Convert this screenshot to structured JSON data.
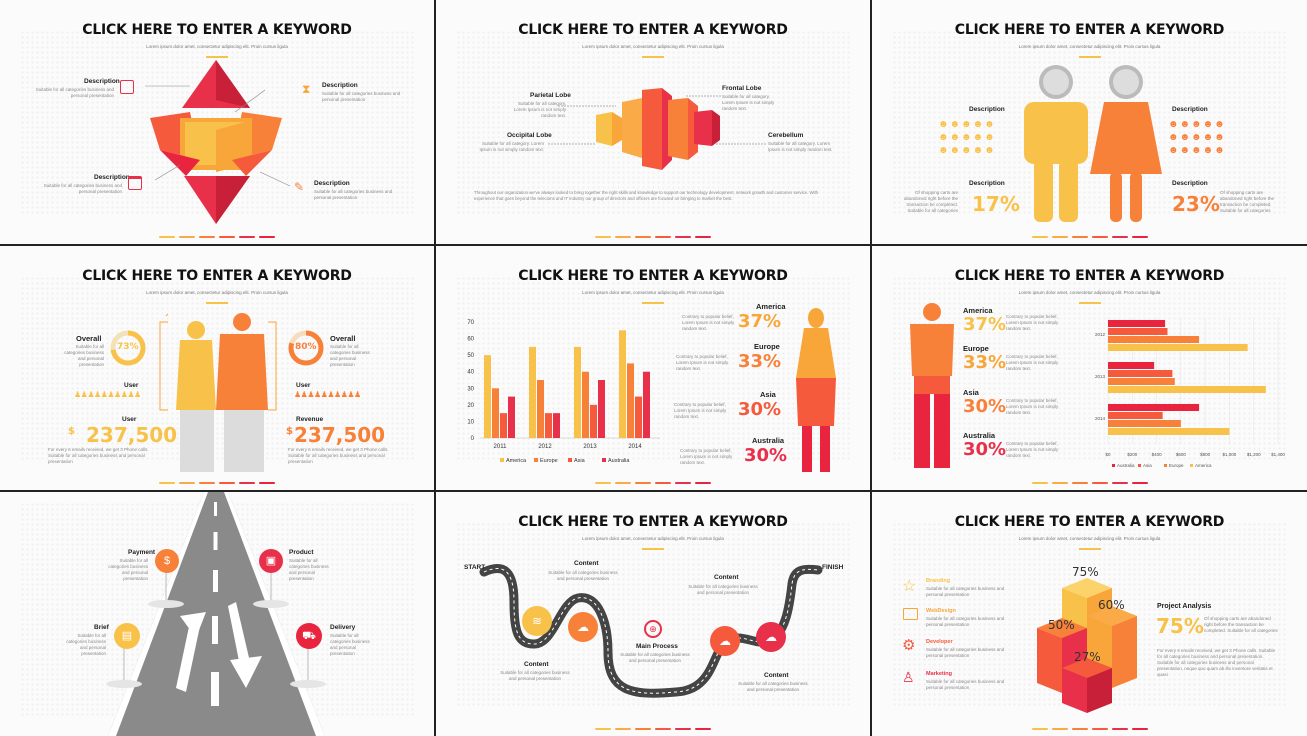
{
  "colors": {
    "yellow": "#f8c24a",
    "light_orange": "#fbaa48",
    "orange": "#f8813a",
    "red_orange": "#f55a3c",
    "red": "#e8304a",
    "crimson": "#e8243f",
    "grey": "#999999"
  },
  "common": {
    "title": "CLICK HERE TO ENTER A KEYWORD",
    "subtitle": "Lorem ipsum dolor amet, consectetur adipiscing elit. Proin cursus ligula"
  },
  "slide1": {
    "items": [
      {
        "title": "Description",
        "text": "Suitable for all categories business and personal presentation",
        "icon": "image-icon"
      },
      {
        "title": "Description",
        "text": "Suitable for all categories business and personal presentation",
        "icon": "hourglass-icon"
      },
      {
        "title": "Description",
        "text": "Suitable for all categories business and personal presentation",
        "icon": "calendar-icon"
      },
      {
        "title": "Description",
        "text": "Suitable for all categories business and personal presentation",
        "icon": "brush-icon"
      }
    ]
  },
  "slide2": {
    "labels": [
      {
        "title": "Parietal Lobe",
        "text": "Suitable for all category. Lorem Ipsum is not simply random text."
      },
      {
        "title": "Frontal Lobe",
        "text": "Suitable for all category. Lorem Ipsum is not simply random text."
      },
      {
        "title": "Occipital Lobe",
        "text": "Suitable for all category. Lorem Ipsum is not simply random text."
      },
      {
        "title": "Cerebellum",
        "text": "Suitable for all category. Lorem Ipsum is not simply random text."
      }
    ],
    "body": "Throughout our organization we've always looked to bring together the right skills and knowledge to support our technology development, network growth and customer service. With experience that goes beyond the telecoms and IT industry our group of directors and officers are focused on bringing to market the best."
  },
  "slide3": {
    "left": {
      "title": "Description",
      "title2": "Description",
      "text": "Of shopping carts are abandoned right before the transaction be completed. Suitable for all categories",
      "value": "17%"
    },
    "right": {
      "title": "Description",
      "title2": "Description",
      "text": "Of shopping carts are abandoned right before the transaction be completed. Suitable for all categories",
      "value": "23%"
    }
  },
  "slide4": {
    "left_overall": {
      "title": "Overall",
      "text": "Suitable for all categories business and personal presentation",
      "value": "73%",
      "pct": 73
    },
    "right_overall": {
      "title": "Overall",
      "text": "Suitable for all categories business and personal presentation",
      "value": "80%",
      "pct": 80
    },
    "left_user": "User",
    "right_user": "User",
    "left_stat": {
      "title": "User",
      "currency": "$",
      "value": "237,500",
      "text": "For every 6 emails received, we get 3 Phone calls. Suitable for all categories business and personal presentation"
    },
    "right_stat": {
      "title": "Revenue",
      "currency": "$",
      "value": "237,500",
      "text": "For every 6 emails received, we get 3 Phone calls. Suitable for all categories business and personal presentation"
    }
  },
  "slide5": {
    "chart_data": {
      "type": "bar",
      "categories": [
        "2011",
        "2012",
        "2013",
        "2014"
      ],
      "series": [
        {
          "name": "America",
          "values": [
            50,
            55,
            55,
            65
          ]
        },
        {
          "name": "Europe",
          "values": [
            30,
            35,
            40,
            45
          ]
        },
        {
          "name": "Asia",
          "values": [
            15,
            15,
            20,
            25
          ]
        },
        {
          "name": "Australia",
          "values": [
            25,
            15,
            35,
            40
          ]
        }
      ],
      "yticks": [
        "0",
        "10",
        "20",
        "30",
        "40",
        "50",
        "60",
        "70"
      ],
      "ylim": [
        0,
        70
      ],
      "legend": "bottom"
    },
    "stats": [
      {
        "region": "America",
        "value": "37%",
        "text": "Contrary to popular belief, Lorem Ipsum is not simply random text."
      },
      {
        "region": "Europe",
        "value": "33%",
        "text": "Contrary to popular belief, Lorem Ipsum is not simply random text."
      },
      {
        "region": "Asia",
        "value": "30%",
        "text": "Contrary to popular belief, Lorem Ipsum is not simply random text."
      },
      {
        "region": "Australia",
        "value": "30%",
        "text": "Contrary to popular belief, Lorem Ipsum is not simply random text."
      }
    ]
  },
  "slide6": {
    "stats": [
      {
        "region": "America",
        "value": "37%",
        "text": "Contrary to popular belief, Lorem Ipsum is not simply random text."
      },
      {
        "region": "Europe",
        "value": "33%",
        "text": "Contrary to popular belief, Lorem Ipsum is not simply random text."
      },
      {
        "region": "Asia",
        "value": "30%",
        "text": "Contrary to popular belief, Lorem Ipsum is not simply random text."
      },
      {
        "region": "Australia",
        "value": "30%",
        "text": "Contrary to popular belief, Lorem Ipsum is not simply random text."
      }
    ],
    "chart_data": {
      "type": "bar",
      "orientation": "horizontal",
      "categories": [
        "2012",
        "2013",
        "2014"
      ],
      "series": [
        {
          "name": "Australia",
          "values": [
            470,
            380,
            750
          ]
        },
        {
          "name": "Asia",
          "values": [
            490,
            530,
            450
          ]
        },
        {
          "name": "Europe",
          "values": [
            750,
            550,
            600
          ]
        },
        {
          "name": "America",
          "values": [
            1150,
            1300,
            1000
          ]
        }
      ],
      "xticks": [
        "$0",
        "$200",
        "$400",
        "$600",
        "$800",
        "$1,000",
        "$1,200",
        "$1,400"
      ],
      "xlim": [
        0,
        1400
      ],
      "legend": "bottom"
    }
  },
  "slide7": {
    "items": [
      {
        "title": "Payment",
        "text": "Suitable for all categories business and personal presentation",
        "icon": "money-icon"
      },
      {
        "title": "Product",
        "text": "Suitable for all categories business and personal presentation",
        "icon": "box-icon"
      },
      {
        "title": "Brief",
        "text": "Suitable for all categories business and personal presentation",
        "icon": "document-icon"
      },
      {
        "title": "Delivery",
        "text": "Suitable for all categories business and personal presentation",
        "icon": "truck-icon"
      }
    ]
  },
  "slide8": {
    "start": "START",
    "finish": "FINISH",
    "items": [
      {
        "title": "Content",
        "text": "Suitable for all categories business and personal presentation"
      },
      {
        "title": "Content",
        "text": "Suitable for all categories business and personal presentation"
      },
      {
        "title": "Main Process",
        "text": "Suitable for all categories business and personal presentation"
      },
      {
        "title": "Content",
        "text": "Suitable for all categories business and personal presentation"
      },
      {
        "title": "Content",
        "text": "Suitable for all categories business and personal presentation"
      }
    ]
  },
  "slide9": {
    "items": [
      {
        "title": "Branding",
        "text": "Suitable for all categories business and personal presentation",
        "icon": "star-icon"
      },
      {
        "title": "WebDesign",
        "text": "Suitable for all categories business and personal presentation",
        "icon": "monitor-icon"
      },
      {
        "title": "Developer",
        "text": "Suitable for all categories business and personal presentation",
        "icon": "gear-icon"
      },
      {
        "title": "Marketing",
        "text": "Suitable for all categories business and personal presentation",
        "icon": "shirt-icon"
      }
    ],
    "cube_labels": [
      "75%",
      "60%",
      "50%",
      "27%"
    ],
    "analysis": {
      "title": "Project Analysis",
      "value": "75%",
      "side": "Of shopping carts are abandoned right before the transaction be completed. Suitable for all categories",
      "text": "For every 6 emails received, we get 3 Phone calls. Suitable for all categories business and personal presentation. Suitable for all categories business and personal presentation, neque quo quam ab illo inventore veritatis et quasi"
    }
  }
}
